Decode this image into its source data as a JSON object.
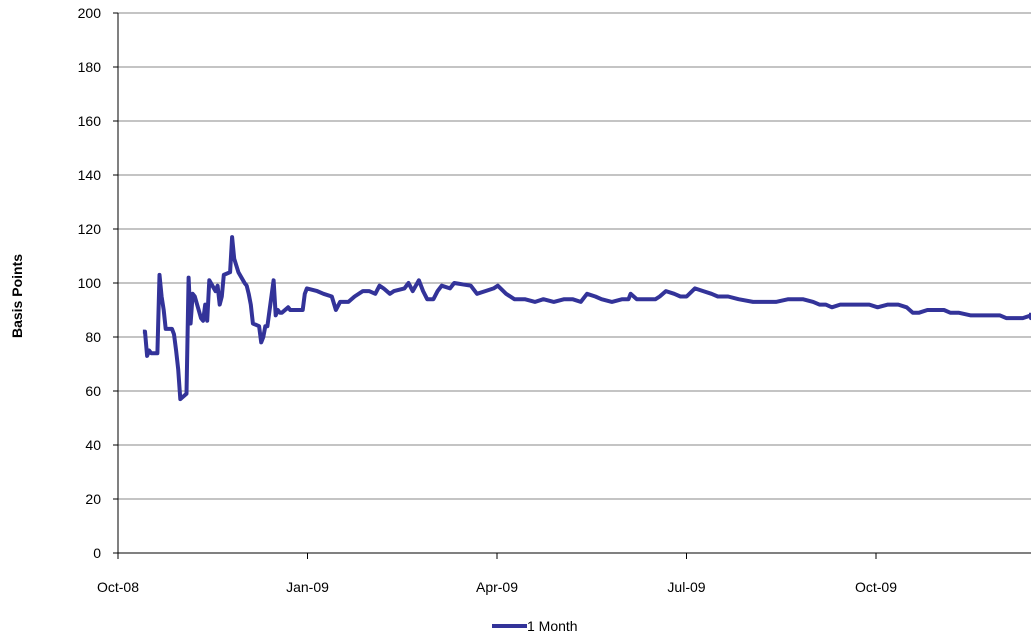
{
  "chart_data": {
    "type": "line",
    "title": "",
    "xlabel": "",
    "ylabel": "Basis Points",
    "ylim": [
      0,
      200
    ],
    "yticks": [
      0,
      20,
      40,
      60,
      80,
      100,
      120,
      140,
      160,
      180,
      200
    ],
    "xtick_labels": [
      "Oct-08",
      "Jan-09",
      "Apr-09",
      "Jul-09",
      "Oct-09"
    ],
    "grid": true,
    "legend_position": "bottom",
    "series": [
      {
        "name": "1 Month",
        "color": "#333399",
        "points": [
          [
            "2008-10-13",
            82
          ],
          [
            "2008-10-14",
            82
          ],
          [
            "2008-10-15",
            73
          ],
          [
            "2008-10-16",
            75
          ],
          [
            "2008-10-17",
            74
          ],
          [
            "2008-10-20",
            74
          ],
          [
            "2008-10-21",
            103
          ],
          [
            "2008-10-22",
            95
          ],
          [
            "2008-10-23",
            90
          ],
          [
            "2008-10-24",
            83
          ],
          [
            "2008-10-27",
            83
          ],
          [
            "2008-10-28",
            81
          ],
          [
            "2008-10-29",
            75
          ],
          [
            "2008-10-30",
            68
          ],
          [
            "2008-10-31",
            57
          ],
          [
            "2008-11-03",
            59
          ],
          [
            "2008-11-04",
            102
          ],
          [
            "2008-11-05",
            85
          ],
          [
            "2008-11-06",
            96
          ],
          [
            "2008-11-07",
            95
          ],
          [
            "2008-11-10",
            87
          ],
          [
            "2008-11-11",
            86
          ],
          [
            "2008-11-12",
            92
          ],
          [
            "2008-11-13",
            86
          ],
          [
            "2008-11-14",
            101
          ],
          [
            "2008-11-17",
            97
          ],
          [
            "2008-11-18",
            99
          ],
          [
            "2008-11-19",
            92
          ],
          [
            "2008-11-20",
            95
          ],
          [
            "2008-11-21",
            103
          ],
          [
            "2008-11-24",
            104
          ],
          [
            "2008-11-25",
            117
          ],
          [
            "2008-11-26",
            109
          ],
          [
            "2008-11-28",
            104
          ],
          [
            "2008-12-01",
            100
          ],
          [
            "2008-12-02",
            99
          ],
          [
            "2008-12-03",
            96
          ],
          [
            "2008-12-04",
            92
          ],
          [
            "2008-12-05",
            85
          ],
          [
            "2008-12-08",
            84
          ],
          [
            "2008-12-09",
            78
          ],
          [
            "2008-12-10",
            80
          ],
          [
            "2008-12-11",
            84
          ],
          [
            "2008-12-12",
            84
          ],
          [
            "2008-12-15",
            101
          ],
          [
            "2008-12-16",
            88
          ],
          [
            "2008-12-17",
            90
          ],
          [
            "2008-12-18",
            89
          ],
          [
            "2008-12-19",
            89
          ],
          [
            "2008-12-22",
            91
          ],
          [
            "2008-12-23",
            90
          ],
          [
            "2008-12-29",
            90
          ],
          [
            "2008-12-30",
            96
          ],
          [
            "2008-12-31",
            98
          ],
          [
            "2009-01-05",
            97
          ],
          [
            "2009-01-08",
            96
          ],
          [
            "2009-01-12",
            95
          ],
          [
            "2009-01-14",
            90
          ],
          [
            "2009-01-16",
            93
          ],
          [
            "2009-01-20",
            93
          ],
          [
            "2009-01-23",
            95
          ],
          [
            "2009-01-27",
            97
          ],
          [
            "2009-01-30",
            97
          ],
          [
            "2009-02-02",
            96
          ],
          [
            "2009-02-04",
            99
          ],
          [
            "2009-02-06",
            98
          ],
          [
            "2009-02-09",
            96
          ],
          [
            "2009-02-11",
            97
          ],
          [
            "2009-02-16",
            98
          ],
          [
            "2009-02-18",
            100
          ],
          [
            "2009-02-20",
            97
          ],
          [
            "2009-02-23",
            101
          ],
          [
            "2009-02-25",
            97
          ],
          [
            "2009-02-27",
            94
          ],
          [
            "2009-03-02",
            94
          ],
          [
            "2009-03-04",
            97
          ],
          [
            "2009-03-06",
            99
          ],
          [
            "2009-03-10",
            98
          ],
          [
            "2009-03-12",
            100
          ],
          [
            "2009-03-20",
            99
          ],
          [
            "2009-03-23",
            96
          ],
          [
            "2009-03-27",
            97
          ],
          [
            "2009-03-31",
            98
          ],
          [
            "2009-04-02",
            99
          ],
          [
            "2009-04-06",
            96
          ],
          [
            "2009-04-10",
            94
          ],
          [
            "2009-04-15",
            94
          ],
          [
            "2009-04-20",
            93
          ],
          [
            "2009-04-24",
            94
          ],
          [
            "2009-04-29",
            93
          ],
          [
            "2009-05-04",
            94
          ],
          [
            "2009-05-08",
            94
          ],
          [
            "2009-05-12",
            93
          ],
          [
            "2009-05-15",
            96
          ],
          [
            "2009-05-19",
            95
          ],
          [
            "2009-05-22",
            94
          ],
          [
            "2009-05-27",
            93
          ],
          [
            "2009-06-01",
            94
          ],
          [
            "2009-06-04",
            94
          ],
          [
            "2009-06-05",
            96
          ],
          [
            "2009-06-08",
            94
          ],
          [
            "2009-06-12",
            94
          ],
          [
            "2009-06-17",
            94
          ],
          [
            "2009-06-19",
            95
          ],
          [
            "2009-06-22",
            97
          ],
          [
            "2009-06-26",
            96
          ],
          [
            "2009-06-29",
            95
          ],
          [
            "2009-07-02",
            95
          ],
          [
            "2009-07-06",
            98
          ],
          [
            "2009-07-10",
            97
          ],
          [
            "2009-07-14",
            96
          ],
          [
            "2009-07-17",
            95
          ],
          [
            "2009-07-22",
            95
          ],
          [
            "2009-07-27",
            94
          ],
          [
            "2009-08-03",
            93
          ],
          [
            "2009-08-10",
            93
          ],
          [
            "2009-08-14",
            93
          ],
          [
            "2009-08-20",
            94
          ],
          [
            "2009-08-27",
            94
          ],
          [
            "2009-09-01",
            93
          ],
          [
            "2009-09-04",
            92
          ],
          [
            "2009-09-07",
            92
          ],
          [
            "2009-09-10",
            91
          ],
          [
            "2009-09-14",
            92
          ],
          [
            "2009-09-18",
            92
          ],
          [
            "2009-09-23",
            92
          ],
          [
            "2009-09-28",
            92
          ],
          [
            "2009-10-02",
            91
          ],
          [
            "2009-10-07",
            92
          ],
          [
            "2009-10-12",
            92
          ],
          [
            "2009-10-16",
            91
          ],
          [
            "2009-10-19",
            89
          ],
          [
            "2009-10-22",
            89
          ],
          [
            "2009-10-26",
            90
          ],
          [
            "2009-10-30",
            90
          ],
          [
            "2009-11-03",
            90
          ],
          [
            "2009-11-06",
            89
          ],
          [
            "2009-11-10",
            89
          ],
          [
            "2009-11-16",
            88
          ],
          [
            "2009-11-20",
            88
          ],
          [
            "2009-11-25",
            88
          ],
          [
            "2009-11-30",
            88
          ],
          [
            "2009-12-03",
            87
          ],
          [
            "2009-12-08",
            87
          ],
          [
            "2009-12-11",
            87
          ],
          [
            "2009-12-15",
            88
          ],
          [
            "2009-12-18",
            87
          ],
          [
            "2009-12-22",
            89
          ],
          [
            "2009-12-28",
            89
          ]
        ]
      }
    ]
  }
}
